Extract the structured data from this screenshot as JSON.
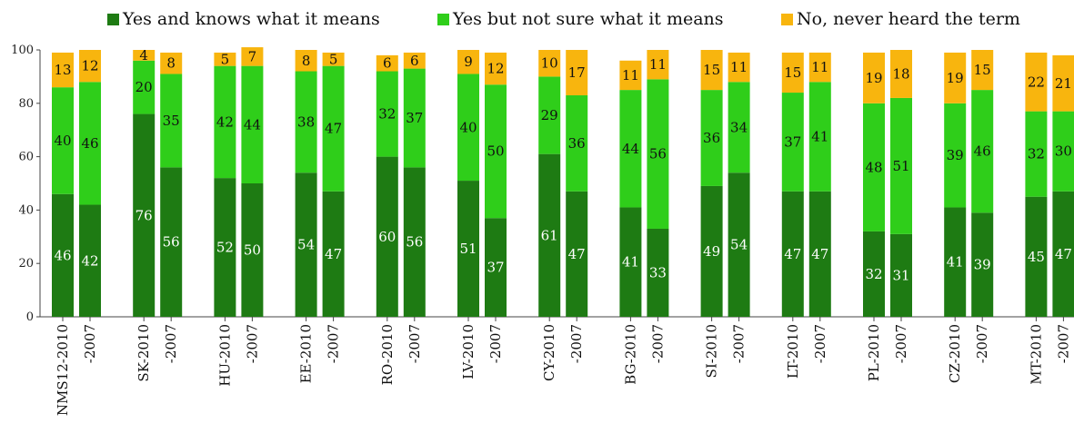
{
  "chart_data": {
    "type": "bar",
    "stacked": true,
    "categories": [
      "NMS12-2010",
      "-2007",
      "SK-2010",
      "-2007",
      "HU-2010",
      "-2007",
      "EE-2010",
      "-2007",
      "RO-2010",
      "-2007",
      "LV-2010",
      "-2007",
      "CY-2010",
      "-2007",
      "BG-2010",
      "-2007",
      "SI-2010",
      "-2007",
      "LT-2010",
      "-2007",
      "PL-2010",
      "-2007",
      "CZ-2010",
      "-2007",
      "MT-2010",
      "-2007"
    ],
    "series": [
      {
        "name": "Yes and knows what it means",
        "color": "#1e7b13",
        "label_color": "#ffffff",
        "values": [
          46,
          42,
          76,
          56,
          52,
          50,
          54,
          47,
          60,
          56,
          51,
          37,
          61,
          47,
          41,
          33,
          49,
          54,
          47,
          47,
          32,
          31,
          41,
          39,
          45,
          47
        ]
      },
      {
        "name": "Yes but not sure what it means",
        "color": "#2fce1a",
        "label_color": "#111111",
        "values": [
          40,
          46,
          20,
          35,
          42,
          44,
          38,
          47,
          32,
          37,
          40,
          50,
          29,
          36,
          44,
          56,
          36,
          34,
          37,
          41,
          48,
          51,
          39,
          46,
          32,
          30
        ]
      },
      {
        "name": "No, never heard the term",
        "color": "#f8b50e",
        "label_color": "#111111",
        "values": [
          13,
          12,
          4,
          8,
          5,
          7,
          8,
          5,
          6,
          6,
          9,
          12,
          10,
          17,
          11,
          11,
          15,
          11,
          15,
          11,
          19,
          18,
          19,
          15,
          22,
          21
        ]
      }
    ],
    "ylim": [
      0,
      100
    ],
    "yticks": [
      0,
      20,
      40,
      60,
      80,
      100
    ],
    "legend_position": "top",
    "grid": false
  }
}
